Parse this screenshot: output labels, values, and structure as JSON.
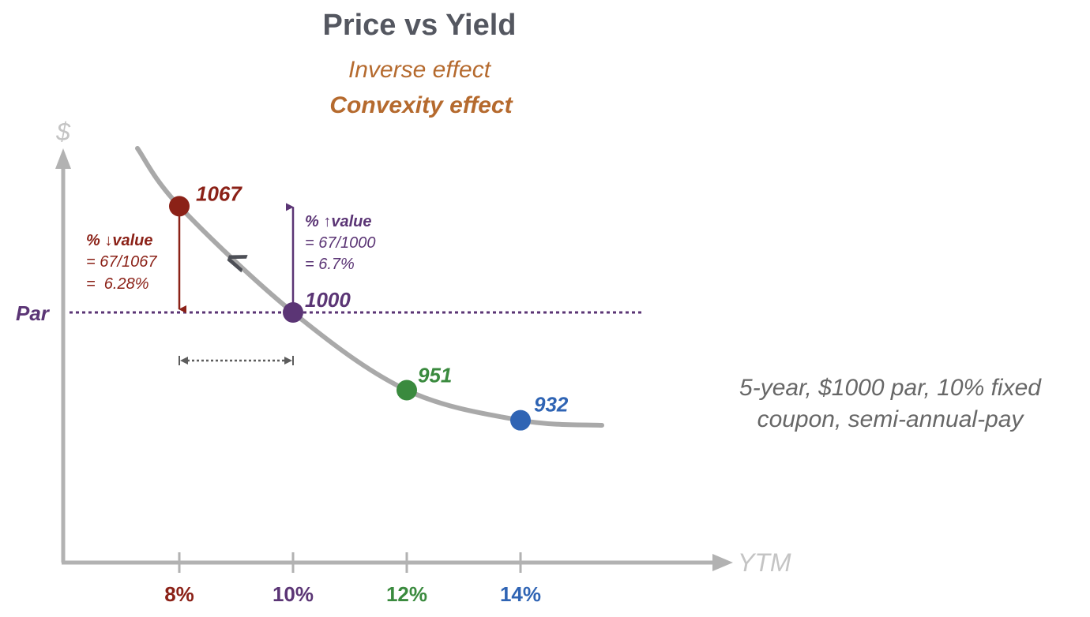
{
  "chart_data": {
    "type": "line",
    "title": "Price vs Yield",
    "subtitle": "Inverse effect",
    "subtitle2": "Convexity effect",
    "xlabel": "YTM",
    "ylabel": "$",
    "categories": [
      "8%",
      "10%",
      "12%",
      "14%"
    ],
    "x": [
      8,
      10,
      12,
      14
    ],
    "values": [
      1067,
      1000,
      951,
      932
    ],
    "point_labels": [
      "1067",
      "1000",
      "951",
      "932"
    ],
    "point_colors": [
      "#8b2117",
      "#5b3575",
      "#3a8a3e",
      "#2f64b4"
    ],
    "curve_color": "#a9a9a9",
    "par_label": "Par",
    "par_value": 1000,
    "par_color": "#5b3575",
    "grid": false,
    "annotations": {
      "left": {
        "title": "% ↓value",
        "line1": "= 67/1067",
        "line2": "=  6.28%",
        "color": "#8b2117"
      },
      "right": {
        "title": "% ↑value",
        "line1": "= 67/1000",
        "line2": "= 6.7%",
        "color": "#5b3575"
      },
      "comparison_symbol": "<"
    },
    "note_lines": [
      "5-year, $1000 par, 10% fixed",
      "coupon, semi-annual-pay"
    ]
  }
}
